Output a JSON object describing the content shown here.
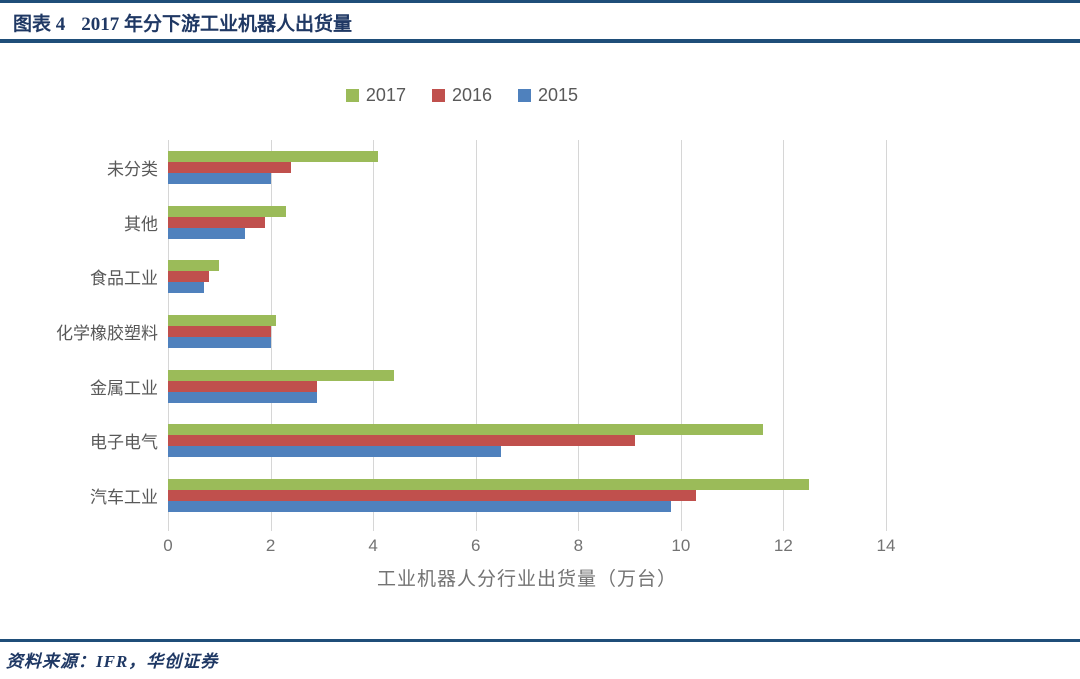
{
  "header": {
    "figure_label": "图表 4",
    "title": "2017 年分下游工业机器人出货量"
  },
  "footer": {
    "source": "资料来源：IFR，华创证券"
  },
  "colors": {
    "accent_navy": "#1F4E79",
    "title_navy": "#1F3864",
    "grid": "#D6D6D6",
    "text_gray": "#595959",
    "tick_gray": "#737373"
  },
  "chart_data": {
    "type": "bar",
    "orientation": "horizontal",
    "title": "2017 年分下游工业机器人出货量",
    "xlabel": "工业机器人分行业出货量（万台）",
    "xlim": [
      0,
      14
    ],
    "xticks": [
      0,
      2,
      4,
      6,
      8,
      10,
      12,
      14
    ],
    "grid": true,
    "legend_position": "top-center",
    "categories": [
      "未分类",
      "其他",
      "食品工业",
      "化学橡胶塑料",
      "金属工业",
      "电子电气",
      "汽车工业"
    ],
    "series": [
      {
        "name": "2017",
        "color": "#9BBB59",
        "values": [
          4.1,
          2.3,
          1.0,
          2.1,
          4.4,
          11.6,
          12.5
        ]
      },
      {
        "name": "2016",
        "color": "#C0504D",
        "values": [
          2.4,
          1.9,
          0.8,
          2.0,
          2.9,
          9.1,
          10.3
        ]
      },
      {
        "name": "2015",
        "color": "#4F81BD",
        "values": [
          2.0,
          1.5,
          0.7,
          2.0,
          2.9,
          6.5,
          9.8
        ]
      }
    ]
  }
}
